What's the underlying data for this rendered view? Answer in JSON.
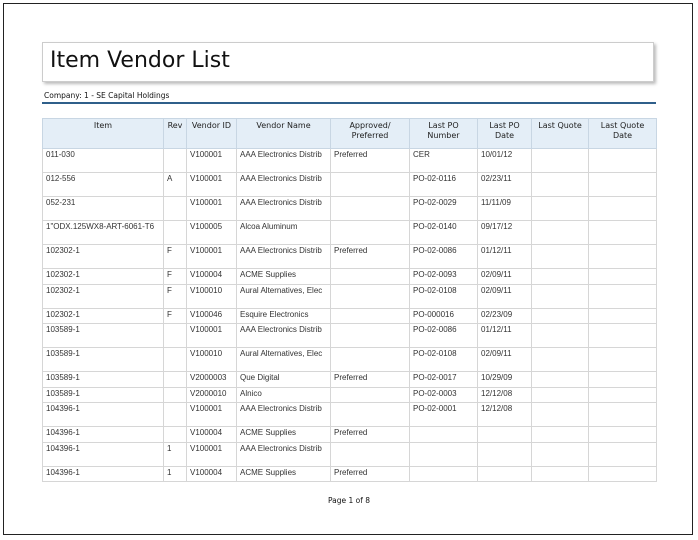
{
  "title": "Item Vendor List",
  "company": "Company:  1 - SE Capital Holdings",
  "columns": [
    "Item",
    "Rev",
    "Vendor ID",
    "Vendor Name",
    "Approved/ Preferred",
    "Last PO Number",
    "Last PO Date",
    "Last Quote",
    "Last Quote Date"
  ],
  "rows": [
    [
      "011-030",
      "",
      "V100001",
      "AAA Electronics Distrib",
      "Preferred",
      "CER",
      "10/01/12",
      "",
      ""
    ],
    [
      "012-556",
      "A",
      "V100001",
      "AAA Electronics Distrib",
      "",
      "PO-02-0116",
      "02/23/11",
      "",
      ""
    ],
    [
      "052-231",
      "",
      "V100001",
      "AAA Electronics Distrib",
      "",
      "PO-02-0029",
      "11/11/09",
      "",
      ""
    ],
    [
      "1\"ODX.125WX8-ART-6061-T6",
      "",
      "V100005",
      "Alcoa Aluminum",
      "",
      "PO-02-0140",
      "09/17/12",
      "",
      ""
    ],
    [
      "102302-1",
      "F",
      "V100001",
      "AAA Electronics Distrib",
      "Preferred",
      "PO-02-0086",
      "01/12/11",
      "",
      ""
    ],
    [
      "102302-1",
      "F",
      "V100004",
      "ACME Supplies",
      "",
      "PO-02-0093",
      "02/09/11",
      "",
      ""
    ],
    [
      "102302-1",
      "F",
      "V100010",
      "Aural Alternatives, Elec",
      "",
      "PO-02-0108",
      "02/09/11",
      "",
      ""
    ],
    [
      "102302-1",
      "F",
      "V100046",
      "Esquire Electronics",
      "",
      "PO-000016",
      "02/23/09",
      "",
      ""
    ],
    [
      "103589-1",
      "",
      "V100001",
      "AAA Electronics Distrib",
      "",
      "PO-02-0086",
      "01/12/11",
      "",
      ""
    ],
    [
      "103589-1",
      "",
      "V100010",
      "Aural Alternatives, Elec",
      "",
      "PO-02-0108",
      "02/09/11",
      "",
      ""
    ],
    [
      "103589-1",
      "",
      "V2000003",
      "Que Digital",
      "Preferred",
      "PO-02-0017",
      "10/29/09",
      "",
      ""
    ],
    [
      "103589-1",
      "",
      "V2000010",
      "Alnico",
      "",
      "PO-02-0003",
      "12/12/08",
      "",
      ""
    ],
    [
      "104396-1",
      "",
      "V100001",
      "AAA Electronics Distrib",
      "",
      "PO-02-0001",
      "12/12/08",
      "",
      ""
    ],
    [
      "104396-1",
      "",
      "V100004",
      "ACME Supplies",
      "Preferred",
      "",
      "",
      "",
      ""
    ],
    [
      "104396-1",
      "1",
      "V100001",
      "AAA Electronics Distrib",
      "",
      "",
      "",
      "",
      ""
    ],
    [
      "104396-1",
      "1",
      "V100004",
      "ACME Supplies",
      "Preferred",
      "",
      "",
      "",
      ""
    ]
  ],
  "footer": "Page 1 of 8"
}
